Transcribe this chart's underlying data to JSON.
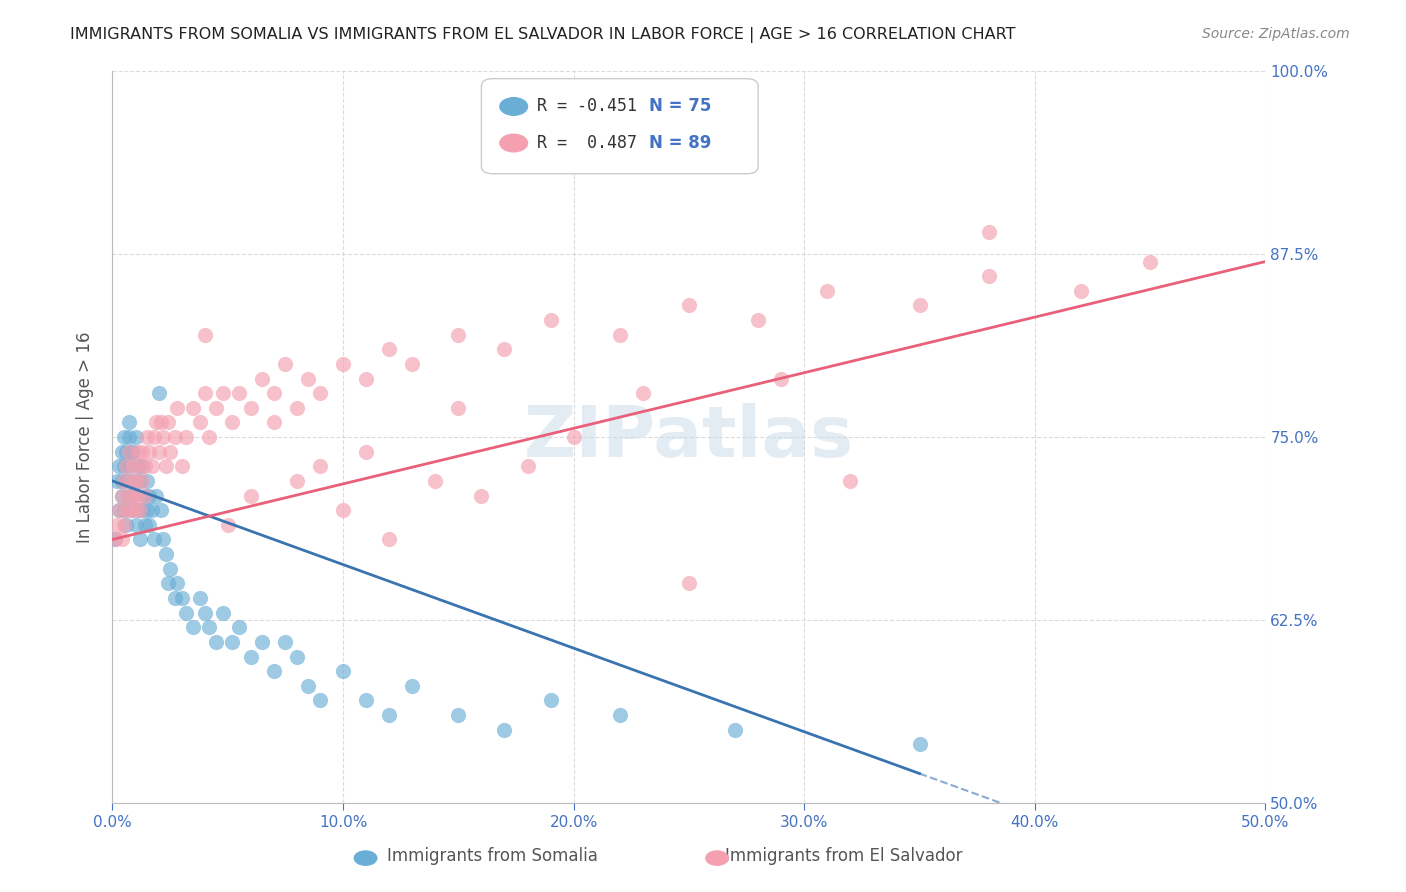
{
  "title": "IMMIGRANTS FROM SOMALIA VS IMMIGRANTS FROM EL SALVADOR IN LABOR FORCE | AGE > 16 CORRELATION CHART",
  "source": "Source: ZipAtlas.com",
  "xlabel_label": "Immigrants from Somalia",
  "ylabel_label": "In Labor Force | Age > 16",
  "x_tick_labels": [
    "0.0%",
    "10.0%",
    "20.0%",
    "30.0%",
    "40.0%",
    "50.0%"
  ],
  "y_tick_labels": [
    "50.0%",
    "62.5%",
    "75.0%",
    "87.5%",
    "100.0%"
  ],
  "xlim": [
    0.0,
    0.5
  ],
  "ylim": [
    0.5,
    1.0
  ],
  "x_ticks": [
    0.0,
    0.1,
    0.2,
    0.3,
    0.4,
    0.5
  ],
  "y_ticks": [
    0.5,
    0.625,
    0.75,
    0.875,
    1.0
  ],
  "somalia_color": "#6aaed6",
  "salvador_color": "#f4a0b0",
  "somalia_line_color": "#3a74b0",
  "salvador_line_color": "#e8607a",
  "somalia_R": -0.451,
  "somalia_N": 75,
  "salvador_R": 0.487,
  "salvador_N": 89,
  "legend_box_color": "#e8f4fd",
  "legend_border_color": "#b0c4de",
  "watermark_color": "#c8d8e8",
  "title_color": "#222222",
  "axis_label_color": "#555555",
  "tick_color": "#4472c4",
  "right_tick_color": "#4472c4",
  "grid_color": "#cccccc",
  "somalia_points_x": [
    0.001,
    0.002,
    0.003,
    0.003,
    0.004,
    0.004,
    0.004,
    0.005,
    0.005,
    0.005,
    0.006,
    0.006,
    0.006,
    0.007,
    0.007,
    0.007,
    0.007,
    0.008,
    0.008,
    0.008,
    0.009,
    0.009,
    0.01,
    0.01,
    0.01,
    0.011,
    0.011,
    0.012,
    0.012,
    0.013,
    0.013,
    0.014,
    0.014,
    0.015,
    0.015,
    0.016,
    0.016,
    0.017,
    0.018,
    0.019,
    0.02,
    0.021,
    0.022,
    0.023,
    0.024,
    0.025,
    0.027,
    0.028,
    0.03,
    0.032,
    0.035,
    0.038,
    0.04,
    0.042,
    0.045,
    0.048,
    0.052,
    0.055,
    0.06,
    0.065,
    0.07,
    0.075,
    0.08,
    0.085,
    0.09,
    0.1,
    0.11,
    0.12,
    0.13,
    0.15,
    0.17,
    0.19,
    0.22,
    0.27,
    0.35
  ],
  "somalia_points_y": [
    0.68,
    0.72,
    0.7,
    0.73,
    0.71,
    0.74,
    0.72,
    0.7,
    0.73,
    0.75,
    0.69,
    0.72,
    0.74,
    0.71,
    0.73,
    0.75,
    0.76,
    0.7,
    0.72,
    0.74,
    0.71,
    0.74,
    0.69,
    0.72,
    0.75,
    0.7,
    0.73,
    0.68,
    0.72,
    0.7,
    0.73,
    0.69,
    0.71,
    0.7,
    0.72,
    0.69,
    0.71,
    0.7,
    0.68,
    0.71,
    0.78,
    0.7,
    0.68,
    0.67,
    0.65,
    0.66,
    0.64,
    0.65,
    0.64,
    0.63,
    0.62,
    0.64,
    0.63,
    0.62,
    0.61,
    0.63,
    0.61,
    0.62,
    0.6,
    0.61,
    0.59,
    0.61,
    0.6,
    0.58,
    0.57,
    0.59,
    0.57,
    0.56,
    0.58,
    0.56,
    0.55,
    0.57,
    0.56,
    0.55,
    0.54
  ],
  "salvador_points_x": [
    0.001,
    0.002,
    0.003,
    0.004,
    0.004,
    0.005,
    0.005,
    0.006,
    0.006,
    0.007,
    0.007,
    0.008,
    0.008,
    0.009,
    0.009,
    0.01,
    0.01,
    0.011,
    0.011,
    0.012,
    0.012,
    0.013,
    0.013,
    0.014,
    0.014,
    0.015,
    0.016,
    0.017,
    0.018,
    0.019,
    0.02,
    0.021,
    0.022,
    0.023,
    0.024,
    0.025,
    0.027,
    0.028,
    0.03,
    0.032,
    0.035,
    0.038,
    0.04,
    0.042,
    0.045,
    0.048,
    0.052,
    0.055,
    0.06,
    0.065,
    0.07,
    0.075,
    0.08,
    0.085,
    0.09,
    0.1,
    0.11,
    0.12,
    0.13,
    0.15,
    0.17,
    0.19,
    0.22,
    0.25,
    0.28,
    0.31,
    0.35,
    0.38,
    0.42,
    0.45,
    0.05,
    0.06,
    0.08,
    0.1,
    0.12,
    0.14,
    0.16,
    0.18,
    0.25,
    0.32,
    0.04,
    0.07,
    0.09,
    0.11,
    0.15,
    0.2,
    0.23,
    0.29,
    0.38
  ],
  "salvador_points_y": [
    0.68,
    0.69,
    0.7,
    0.68,
    0.71,
    0.69,
    0.72,
    0.7,
    0.73,
    0.71,
    0.74,
    0.7,
    0.72,
    0.71,
    0.73,
    0.7,
    0.72,
    0.71,
    0.74,
    0.7,
    0.73,
    0.72,
    0.74,
    0.71,
    0.73,
    0.75,
    0.74,
    0.73,
    0.75,
    0.76,
    0.74,
    0.76,
    0.75,
    0.73,
    0.76,
    0.74,
    0.75,
    0.77,
    0.73,
    0.75,
    0.77,
    0.76,
    0.78,
    0.75,
    0.77,
    0.78,
    0.76,
    0.78,
    0.77,
    0.79,
    0.78,
    0.8,
    0.77,
    0.79,
    0.78,
    0.8,
    0.79,
    0.81,
    0.8,
    0.82,
    0.81,
    0.83,
    0.82,
    0.84,
    0.83,
    0.85,
    0.84,
    0.86,
    0.85,
    0.87,
    0.69,
    0.71,
    0.72,
    0.7,
    0.68,
    0.72,
    0.71,
    0.73,
    0.65,
    0.72,
    0.82,
    0.76,
    0.73,
    0.74,
    0.77,
    0.75,
    0.78,
    0.79,
    0.89
  ]
}
